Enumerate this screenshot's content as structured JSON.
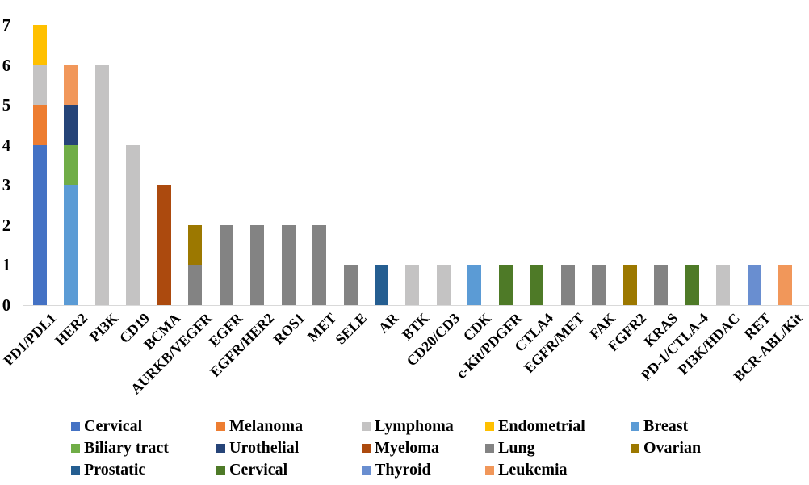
{
  "chart_data": {
    "type": "bar",
    "stacked": true,
    "title": "",
    "xlabel": "",
    "ylabel": "",
    "ylim": [
      0,
      7
    ],
    "yticks": [
      0,
      1,
      2,
      3,
      4,
      5,
      6,
      7
    ],
    "grid": false,
    "legend_position": "bottom",
    "axis_colors": {
      "baseline": "#D9D9D9",
      "tick_label": "#000000"
    },
    "palette": {
      "cervical_blue": "#4472C4",
      "melanoma_orange": "#ED7D31",
      "lymphoma_gray": "#C4C3C3",
      "endometrial_gold": "#FFC000",
      "breast_blue": "#5B9BD5",
      "biliary_green": "#70AD47",
      "urothelial_navy": "#264478",
      "myeloma_rust": "#AC4A0E",
      "lung_gray": "#838383",
      "ovarian_olive": "#9C7800",
      "prostatic_blue": "#255E91",
      "cervical_green": "#4E7A27",
      "thyroid_blue": "#698ED0",
      "leukemia_orange": "#F1975A"
    },
    "legend": [
      {
        "label": "Cervical",
        "color_key": "cervical_blue"
      },
      {
        "label": "Melanoma",
        "color_key": "melanoma_orange"
      },
      {
        "label": "Lymphoma",
        "color_key": "lymphoma_gray"
      },
      {
        "label": "Endometrial",
        "color_key": "endometrial_gold"
      },
      {
        "label": "Breast",
        "color_key": "breast_blue"
      },
      {
        "label": "Biliary tract",
        "color_key": "biliary_green"
      },
      {
        "label": "Urothelial",
        "color_key": "urothelial_navy"
      },
      {
        "label": "Myeloma",
        "color_key": "myeloma_rust"
      },
      {
        "label": "Lung",
        "color_key": "lung_gray"
      },
      {
        "label": "Ovarian",
        "color_key": "ovarian_olive"
      },
      {
        "label": "Prostatic",
        "color_key": "prostatic_blue"
      },
      {
        "label": "Cervical",
        "color_key": "cervical_green"
      },
      {
        "label": "Thyroid",
        "color_key": "thyroid_blue"
      },
      {
        "label": "Leukemia",
        "color_key": "leukemia_orange"
      }
    ],
    "bars": [
      {
        "category": "PD1/PDL1",
        "segments": [
          {
            "type": "Cervical",
            "color_key": "cervical_blue",
            "value": 4
          },
          {
            "type": "Melanoma",
            "color_key": "melanoma_orange",
            "value": 1
          },
          {
            "type": "Lymphoma",
            "color_key": "lymphoma_gray",
            "value": 1
          },
          {
            "type": "Endometrial",
            "color_key": "endometrial_gold",
            "value": 1
          }
        ]
      },
      {
        "category": "HER2",
        "segments": [
          {
            "type": "Breast",
            "color_key": "breast_blue",
            "value": 3
          },
          {
            "type": "Biliary tract",
            "color_key": "biliary_green",
            "value": 1
          },
          {
            "type": "Urothelial",
            "color_key": "urothelial_navy",
            "value": 1
          },
          {
            "type": "Leukemia",
            "color_key": "leukemia_orange",
            "value": 1
          }
        ]
      },
      {
        "category": "PI3K",
        "segments": [
          {
            "type": "Lymphoma",
            "color_key": "lymphoma_gray",
            "value": 6
          }
        ]
      },
      {
        "category": "CD19",
        "segments": [
          {
            "type": "Lymphoma",
            "color_key": "lymphoma_gray",
            "value": 4
          }
        ]
      },
      {
        "category": "BCMA",
        "segments": [
          {
            "type": "Myeloma",
            "color_key": "myeloma_rust",
            "value": 3
          }
        ]
      },
      {
        "category": "AURKB/VEGFR",
        "segments": [
          {
            "type": "Lung",
            "color_key": "lung_gray",
            "value": 1
          },
          {
            "type": "Ovarian",
            "color_key": "ovarian_olive",
            "value": 1
          }
        ]
      },
      {
        "category": "EGFR",
        "segments": [
          {
            "type": "Lung",
            "color_key": "lung_gray",
            "value": 2
          }
        ]
      },
      {
        "category": "EGFR/HER2",
        "segments": [
          {
            "type": "Lung",
            "color_key": "lung_gray",
            "value": 2
          }
        ]
      },
      {
        "category": "ROS1",
        "segments": [
          {
            "type": "Lung",
            "color_key": "lung_gray",
            "value": 2
          }
        ]
      },
      {
        "category": "MET",
        "segments": [
          {
            "type": "Lung",
            "color_key": "lung_gray",
            "value": 2
          }
        ]
      },
      {
        "category": "SELE",
        "segments": [
          {
            "type": "Lung",
            "color_key": "lung_gray",
            "value": 1
          }
        ]
      },
      {
        "category": "AR",
        "segments": [
          {
            "type": "Prostatic",
            "color_key": "prostatic_blue",
            "value": 1
          }
        ]
      },
      {
        "category": "BTK",
        "segments": [
          {
            "type": "Lymphoma",
            "color_key": "lymphoma_gray",
            "value": 1
          }
        ]
      },
      {
        "category": "CD20/CD3",
        "segments": [
          {
            "type": "Lymphoma",
            "color_key": "lymphoma_gray",
            "value": 1
          }
        ]
      },
      {
        "category": "CDK",
        "segments": [
          {
            "type": "Breast",
            "color_key": "breast_blue",
            "value": 1
          }
        ]
      },
      {
        "category": "c-Kit/PDGFR",
        "segments": [
          {
            "type": "Cervical",
            "color_key": "cervical_green",
            "value": 1
          }
        ]
      },
      {
        "category": "CTLA4",
        "segments": [
          {
            "type": "Cervical",
            "color_key": "cervical_green",
            "value": 1
          }
        ]
      },
      {
        "category": "EGFR/MET",
        "segments": [
          {
            "type": "Lung",
            "color_key": "lung_gray",
            "value": 1
          }
        ]
      },
      {
        "category": "FAK",
        "segments": [
          {
            "type": "Lung",
            "color_key": "lung_gray",
            "value": 1
          }
        ]
      },
      {
        "category": "FGFR2",
        "segments": [
          {
            "type": "Ovarian",
            "color_key": "ovarian_olive",
            "value": 1
          }
        ]
      },
      {
        "category": "KRAS",
        "segments": [
          {
            "type": "Lung",
            "color_key": "lung_gray",
            "value": 1
          }
        ]
      },
      {
        "category": "PD-1/CTLA-4",
        "segments": [
          {
            "type": "Cervical",
            "color_key": "cervical_green",
            "value": 1
          }
        ]
      },
      {
        "category": "PI3K/HDAC",
        "segments": [
          {
            "type": "Lymphoma",
            "color_key": "lymphoma_gray",
            "value": 1
          }
        ]
      },
      {
        "category": "RET",
        "segments": [
          {
            "type": "Thyroid",
            "color_key": "thyroid_blue",
            "value": 1
          }
        ]
      },
      {
        "category": "BCR-ABL/Kit",
        "segments": [
          {
            "type": "Leukemia",
            "color_key": "leukemia_orange",
            "value": 1
          }
        ]
      }
    ]
  }
}
